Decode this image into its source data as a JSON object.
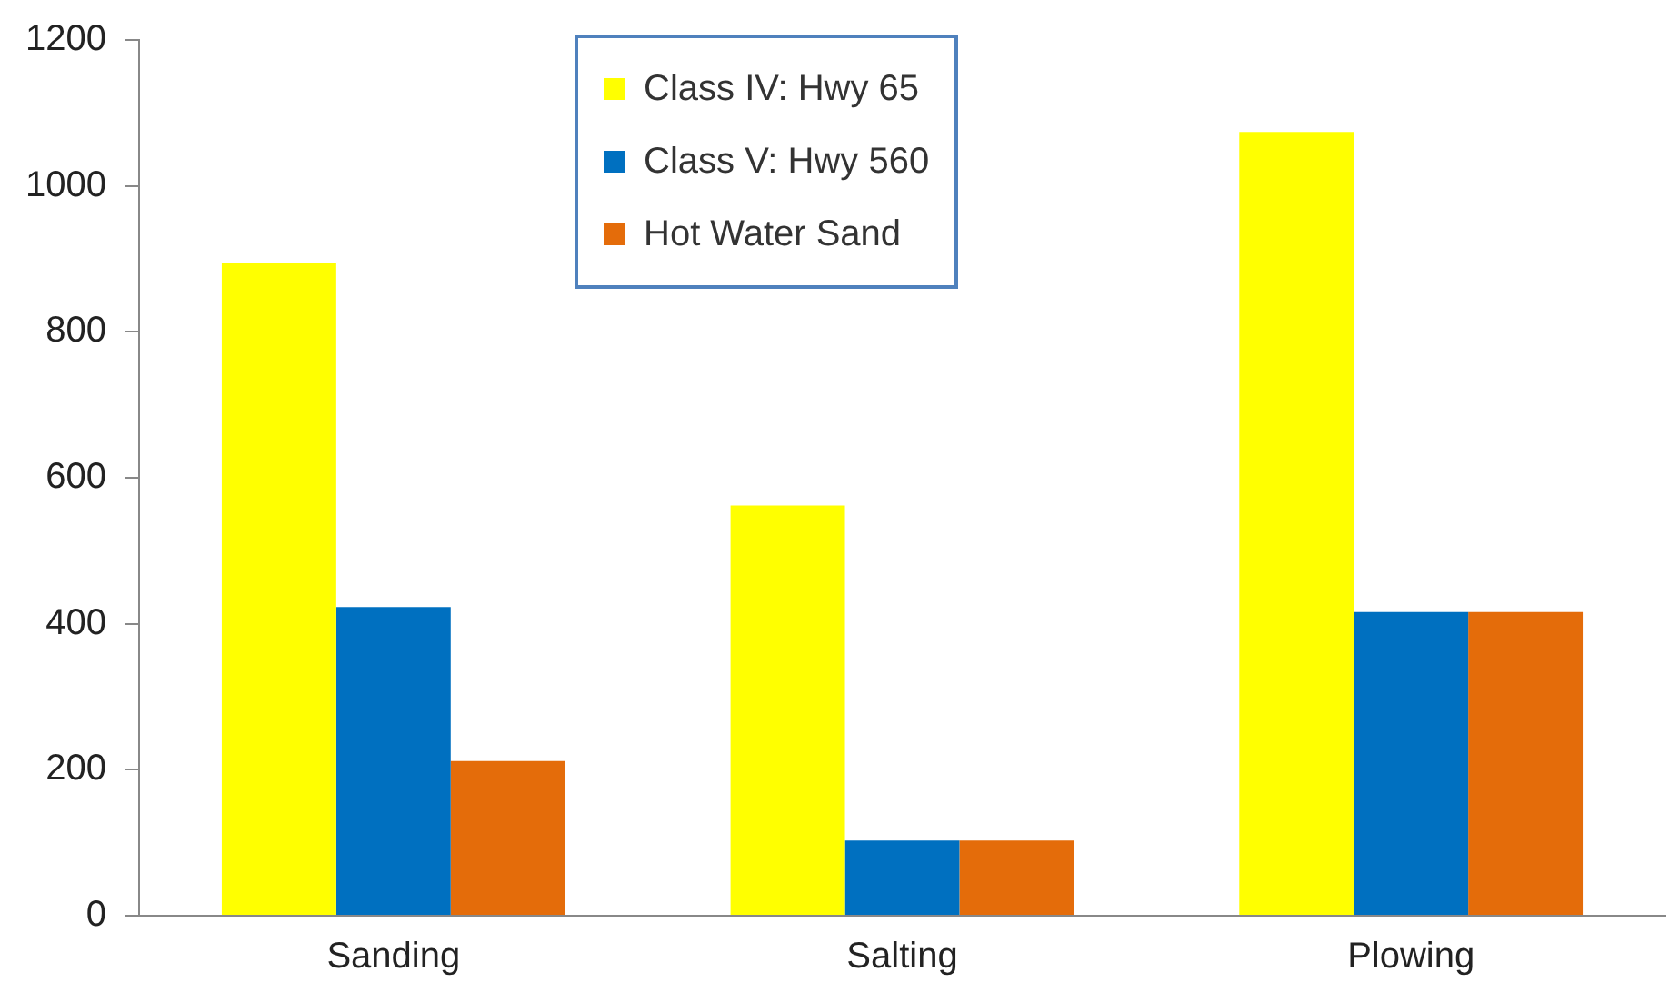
{
  "chart_data": {
    "type": "bar",
    "categories": [
      "Sanding",
      "Salting",
      "Plowing"
    ],
    "series": [
      {
        "name": "Class IV: Hwy 65",
        "color": "#ffff00",
        "values": [
          895,
          562,
          1074
        ]
      },
      {
        "name": "Class V: Hwy 560",
        "color": "#0070c0",
        "values": [
          423,
          103,
          416
        ]
      },
      {
        "name": "Hot Water Sand",
        "color": "#e46c0a",
        "values": [
          212,
          103,
          416
        ]
      }
    ],
    "ylim": [
      0,
      1200
    ],
    "yticks": [
      0,
      200,
      400,
      600,
      800,
      1000,
      1200
    ],
    "grid": false,
    "legend": "top"
  }
}
